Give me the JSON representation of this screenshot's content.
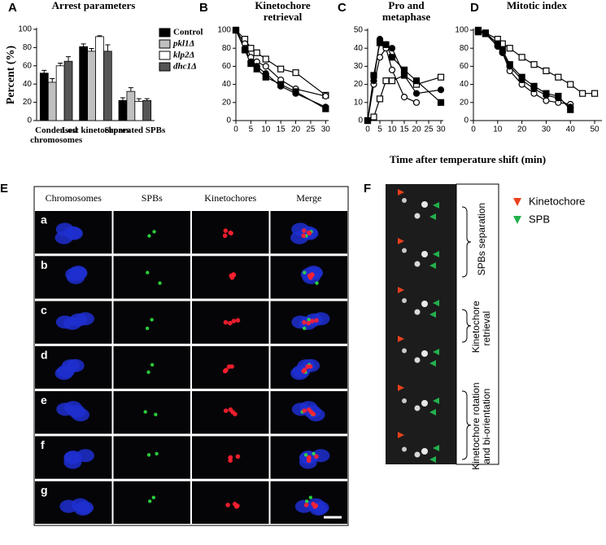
{
  "chart_data": [
    {
      "panel": "A",
      "type": "bar",
      "title": "Arrest parameters",
      "y_label": "Percent (%)",
      "categories": [
        "Condensed chromosomes",
        "Lost kinetochores",
        "Separated SPBs"
      ],
      "series": [
        {
          "name": "Control",
          "color": "#000000",
          "values": [
            52,
            81,
            22
          ],
          "errors": [
            3,
            3,
            3
          ]
        },
        {
          "name": "pkl1Δ",
          "color": "#c0c0c0",
          "values": [
            42,
            76,
            32
          ],
          "errors": [
            4,
            3,
            4
          ]
        },
        {
          "name": "klp2Δ",
          "color": "#ffffff",
          "values": [
            60,
            92,
            21
          ],
          "errors": [
            3,
            1,
            3
          ]
        },
        {
          "name": "dhc1Δ",
          "color": "#555555",
          "values": [
            65,
            76,
            22
          ],
          "errors": [
            5,
            7,
            2
          ]
        }
      ],
      "ylim": [
        0,
        100
      ],
      "yticks": [
        0,
        20,
        40,
        60,
        80,
        100
      ],
      "legend": "upper-right"
    },
    {
      "panel": "B",
      "type": "line",
      "title": "Kinetochore retrieval",
      "x": [
        0,
        3,
        5,
        7,
        10,
        15,
        20,
        30
      ],
      "series": [
        {
          "marker": "square-open",
          "color": "#000000",
          "values": [
            100,
            90,
            80,
            75,
            68,
            57,
            53,
            28
          ]
        },
        {
          "marker": "circle-open",
          "color": "#000000",
          "values": [
            100,
            85,
            70,
            65,
            60,
            45,
            35,
            27
          ]
        },
        {
          "marker": "circle-filled",
          "color": "#000000",
          "values": [
            100,
            80,
            65,
            60,
            52,
            38,
            30,
            15
          ]
        },
        {
          "marker": "square-filled",
          "color": "#000000",
          "values": [
            100,
            78,
            63,
            57,
            48,
            40,
            32,
            13
          ]
        }
      ],
      "xlim": [
        0,
        31
      ],
      "xticks": [
        0,
        5,
        10,
        15,
        20,
        25,
        30
      ],
      "ylim": [
        0,
        100
      ],
      "yticks": [
        0,
        20,
        40,
        60,
        80,
        100
      ]
    },
    {
      "panel": "C",
      "type": "line",
      "title": "Pro and metaphase",
      "x": [
        0,
        2.5,
        5,
        7.5,
        10,
        15,
        20,
        30
      ],
      "series": [
        {
          "marker": "square-open",
          "color": "#000000",
          "values": [
            0,
            2,
            12,
            22,
            22,
            25,
            20,
            24
          ]
        },
        {
          "marker": "circle-open",
          "color": "#000000",
          "values": [
            0,
            20,
            35,
            40,
            28,
            13,
            10,
            null
          ]
        },
        {
          "marker": "circle-filled",
          "color": "#000000",
          "values": [
            0,
            22,
            45,
            42,
            40,
            25,
            15,
            17
          ]
        },
        {
          "marker": "square-filled",
          "color": "#000000",
          "values": [
            0,
            25,
            43,
            42,
            35,
            28,
            22,
            10
          ]
        }
      ],
      "xlim": [
        0,
        31
      ],
      "xticks": [
        0,
        5,
        10,
        15,
        20,
        25,
        30
      ],
      "ylim": [
        0,
        50
      ],
      "yticks": [
        0,
        10,
        20,
        30,
        40,
        50
      ]
    },
    {
      "panel": "D",
      "type": "line",
      "title": "Mitotic index",
      "x": [
        2,
        5,
        10,
        12,
        15,
        20,
        25,
        30,
        35,
        40,
        45,
        50
      ],
      "series": [
        {
          "marker": "square-open",
          "color": "#000000",
          "values": [
            100,
            97,
            90,
            85,
            80,
            70,
            62,
            55,
            48,
            40,
            30,
            30
          ]
        },
        {
          "marker": "circle-open",
          "color": "#000000",
          "values": [
            100,
            97,
            85,
            75,
            55,
            40,
            30,
            22,
            20,
            18,
            null,
            null
          ]
        },
        {
          "marker": "circle-filled",
          "color": "#000000",
          "values": [
            100,
            96,
            82,
            75,
            60,
            45,
            35,
            28,
            25,
            15,
            null,
            null
          ]
        },
        {
          "marker": "square-filled",
          "color": "#000000",
          "values": [
            98,
            96,
            85,
            78,
            62,
            48,
            38,
            30,
            27,
            12,
            null,
            null
          ]
        }
      ],
      "xlim": [
        0,
        53
      ],
      "xticks": [
        0,
        10,
        20,
        30,
        40,
        50
      ],
      "ylim": [
        0,
        100
      ],
      "yticks": [
        0,
        20,
        40,
        60,
        80,
        100
      ]
    }
  ],
  "x_label": "Time after temperature shift (min)",
  "panel_e": {
    "letter": "E",
    "columns": [
      "Chromosomes",
      "SPBs",
      "Kinetochores",
      "Merge"
    ],
    "rows": [
      "a",
      "b",
      "c",
      "d",
      "e",
      "f",
      "g"
    ]
  },
  "panel_f": {
    "letter": "F",
    "legend": [
      {
        "label": "Kinetochore",
        "color": "#e8401c"
      },
      {
        "label": "SPB",
        "color": "#22b14c"
      }
    ],
    "stages": [
      "SPBs separation",
      "Kinetochore retrieval",
      "Kinetochore rotation and bi-orientation"
    ]
  }
}
